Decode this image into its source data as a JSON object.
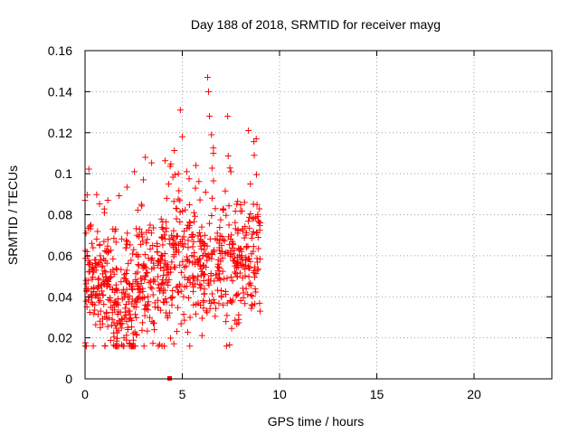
{
  "chart_data": {
    "type": "scatter",
    "title": "Day 188 of 2018, SRMTID for receiver mayg",
    "xlabel": "GPS time / hours",
    "ylabel": "SRMTID / TECUs",
    "xlim": [
      0,
      24
    ],
    "ylim": [
      0,
      0.16
    ],
    "x_ticks": [
      0,
      5,
      10,
      15,
      20
    ],
    "x_tick_labels": [
      "0",
      "5",
      "10",
      "15",
      "20"
    ],
    "y_ticks": [
      0,
      0.02,
      0.04,
      0.06,
      0.08,
      0.1,
      0.12,
      0.14,
      0.16
    ],
    "y_tick_labels": [
      "0",
      "0.02",
      "0.04",
      "0.06",
      "0.08",
      "0.1",
      "0.12",
      "0.14",
      "0.16"
    ],
    "grid": true,
    "marker": "plus",
    "color": "#ff0000",
    "series": [
      {
        "name": "SRMTID",
        "x_range": [
          0,
          9.0
        ],
        "points_note": "dense cloud of ~900 samples",
        "points": [
          [
            0.0,
            0.087
          ],
          [
            0.05,
            0.071
          ],
          [
            0.1,
            0.062
          ],
          [
            0.15,
            0.048
          ],
          [
            0.2,
            0.04
          ],
          [
            0.25,
            0.056
          ],
          [
            0.3,
            0.075
          ],
          [
            0.35,
            0.066
          ],
          [
            0.4,
            0.052
          ],
          [
            0.45,
            0.044
          ],
          [
            0.5,
            0.036
          ],
          [
            0.55,
            0.058
          ],
          [
            0.6,
            0.041
          ],
          [
            0.7,
            0.049
          ],
          [
            0.8,
            0.033
          ],
          [
            0.9,
            0.055
          ],
          [
            1.0,
            0.081
          ],
          [
            1.1,
            0.062
          ],
          [
            1.2,
            0.046
          ],
          [
            1.3,
            0.038
          ],
          [
            1.4,
            0.029
          ],
          [
            1.5,
            0.051
          ],
          [
            1.6,
            0.044
          ],
          [
            1.7,
            0.036
          ],
          [
            1.8,
            0.027
          ],
          [
            1.9,
            0.042
          ],
          [
            2.0,
            0.02
          ],
          [
            2.1,
            0.031
          ],
          [
            2.2,
            0.024
          ],
          [
            2.3,
            0.017
          ],
          [
            2.4,
            0.045
          ],
          [
            2.5,
            0.063
          ],
          [
            2.6,
            0.038
          ],
          [
            2.7,
            0.052
          ],
          [
            2.8,
            0.073
          ],
          [
            2.9,
            0.085
          ],
          [
            3.0,
            0.097
          ],
          [
            3.1,
            0.108
          ],
          [
            3.2,
            0.068
          ],
          [
            3.3,
            0.047
          ],
          [
            3.4,
            0.058
          ],
          [
            3.5,
            0.041
          ],
          [
            3.6,
            0.035
          ],
          [
            3.7,
            0.066
          ],
          [
            3.8,
            0.057
          ],
          [
            3.9,
            0.044
          ],
          [
            4.0,
            0.073
          ],
          [
            4.1,
            0.061
          ],
          [
            4.2,
            0.088
          ],
          [
            4.3,
            0.095
          ],
          [
            4.4,
            0.052
          ],
          [
            4.5,
            0.043
          ],
          [
            4.6,
            0.066
          ],
          [
            4.7,
            0.078
          ],
          [
            4.8,
            0.1
          ],
          [
            4.9,
            0.131
          ],
          [
            5.0,
            0.118
          ],
          [
            5.1,
            0.072
          ],
          [
            5.2,
            0.055
          ],
          [
            5.3,
            0.064
          ],
          [
            5.4,
            0.047
          ],
          [
            5.5,
            0.069
          ],
          [
            5.6,
            0.081
          ],
          [
            5.7,
            0.104
          ],
          [
            5.8,
            0.058
          ],
          [
            5.9,
            0.046
          ],
          [
            6.0,
            0.074
          ],
          [
            6.1,
            0.066
          ],
          [
            6.2,
            0.091
          ],
          [
            6.3,
            0.147
          ],
          [
            6.35,
            0.14
          ],
          [
            6.4,
            0.128
          ],
          [
            6.5,
            0.119
          ],
          [
            6.6,
            0.11
          ],
          [
            6.7,
            0.083
          ],
          [
            6.8,
            0.071
          ],
          [
            6.9,
            0.054
          ],
          [
            7.0,
            0.043
          ],
          [
            7.1,
            0.036
          ],
          [
            7.2,
            0.061
          ],
          [
            7.3,
            0.049
          ],
          [
            7.4,
            0.075
          ],
          [
            7.5,
            0.101
          ],
          [
            7.6,
            0.066
          ],
          [
            7.7,
            0.052
          ],
          [
            7.8,
            0.041
          ],
          [
            7.9,
            0.029
          ],
          [
            8.0,
            0.058
          ],
          [
            8.1,
            0.073
          ],
          [
            8.2,
            0.086
          ],
          [
            8.3,
            0.064
          ],
          [
            8.4,
            0.121
          ],
          [
            8.5,
            0.095
          ],
          [
            8.6,
            0.078
          ],
          [
            8.7,
            0.109
          ],
          [
            8.8,
            0.117
          ],
          [
            8.9,
            0.069
          ],
          [
            9.0,
            0.033
          ]
        ]
      }
    ],
    "marker_at_zero": {
      "x": 4.35,
      "y": 0
    }
  }
}
